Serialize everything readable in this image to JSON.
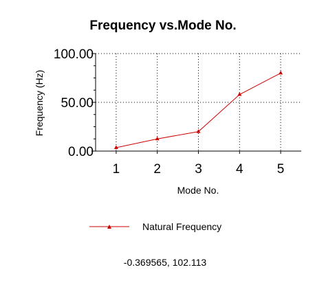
{
  "chart_data": {
    "type": "line",
    "title": "Frequency vs.Mode No.",
    "xlabel": "Mode No.",
    "ylabel": "Frequency (Hz)",
    "x": [
      1,
      2,
      3,
      4,
      5
    ],
    "xlim": [
      0.5,
      5.5
    ],
    "ylim": [
      0,
      100
    ],
    "yticks": [
      "0.00",
      "50.00",
      "100.00"
    ],
    "xticks": [
      "1",
      "2",
      "3",
      "4",
      "5"
    ],
    "grid": true,
    "legend_position": "bottom",
    "series": [
      {
        "name": "Natural Frequency",
        "values": [
          3.5,
          12.5,
          20,
          58,
          80
        ],
        "color": "#cc0000",
        "marker": "triangle"
      }
    ]
  },
  "status": {
    "coordinate_readout": "-0.369565, 102.113"
  }
}
